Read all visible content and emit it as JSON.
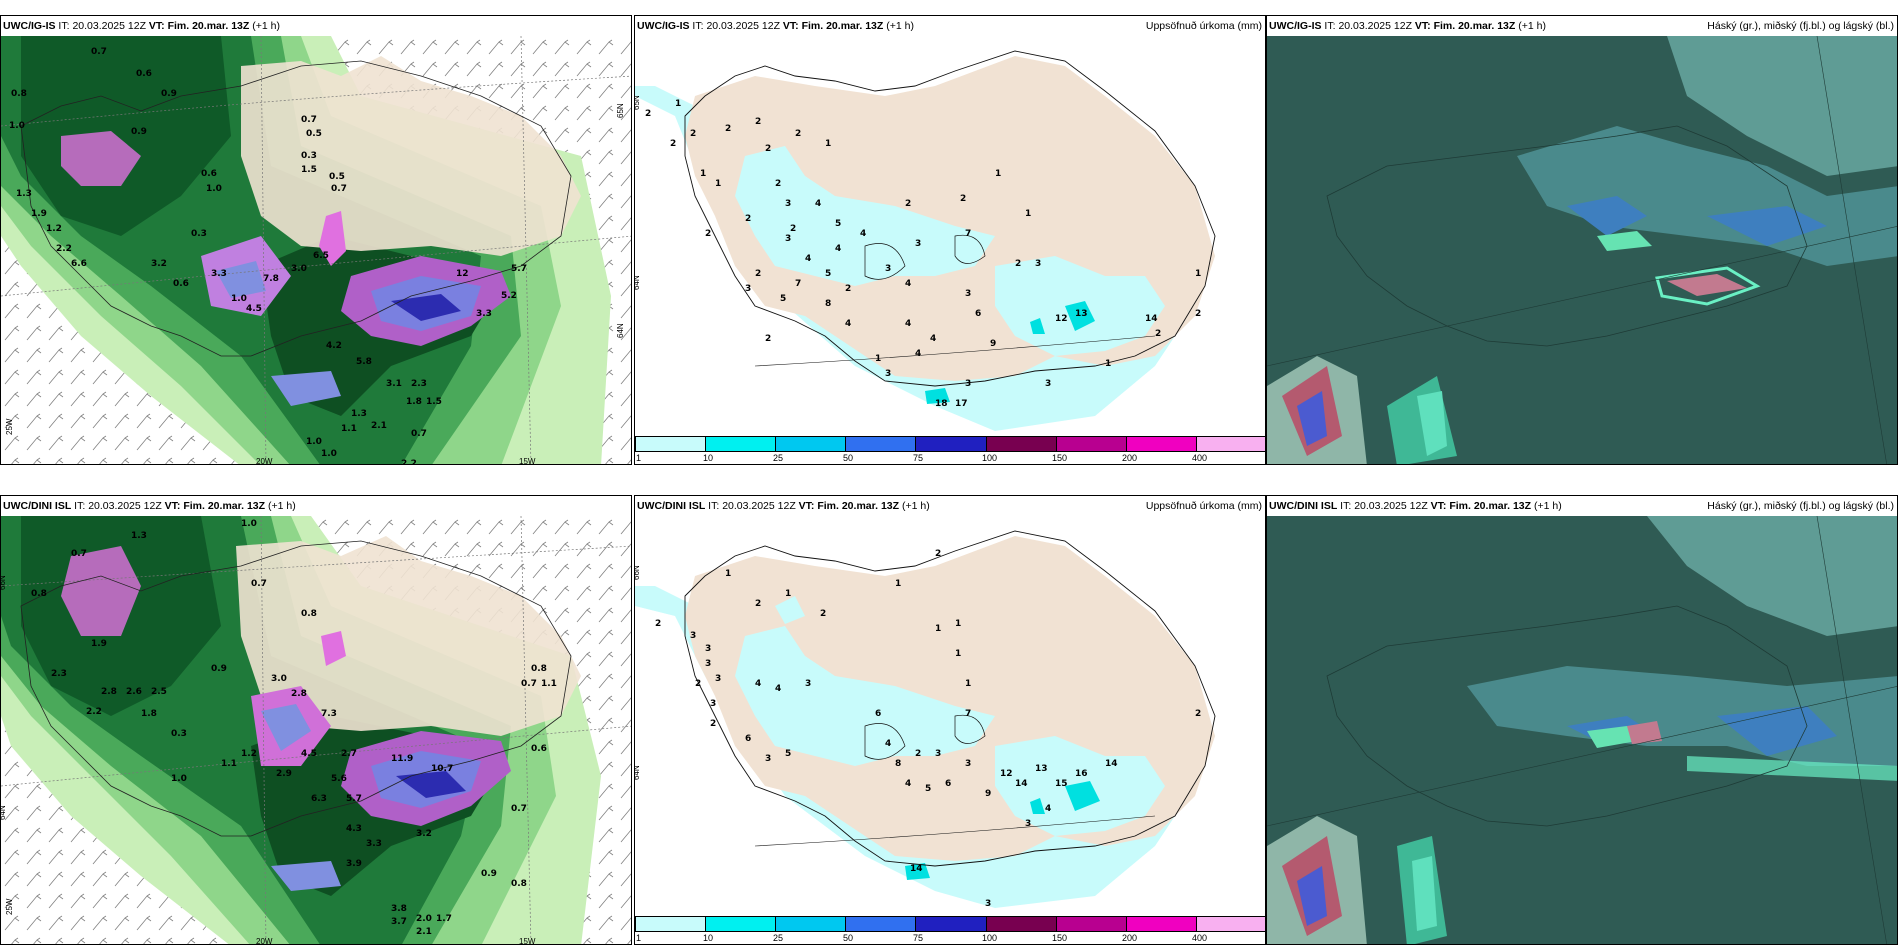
{
  "panels": [
    {
      "model_label": "UWC/IG-IS",
      "it_label": "IT:",
      "it_value": "20.03.2025 12Z",
      "vt_label": "VT:",
      "vt_value": "Fim. 20.mar. 13Z",
      "offset": "(+1 h)",
      "right_label": "",
      "axis_labels": [
        "20W",
        "15W",
        "25W",
        "65N",
        "64N"
      ]
    },
    {
      "model_label": "UWC/IG-IS",
      "it_label": "IT:",
      "it_value": "20.03.2025 12Z",
      "vt_label": "VT:",
      "vt_value": "Fim. 20.mar. 13Z",
      "offset": "(+1 h)",
      "right_label": "Uppsöfnuð úrkoma (mm)",
      "axis_labels": [
        "65N",
        "64N"
      ]
    },
    {
      "model_label": "UWC/IG-IS",
      "it_label": "IT:",
      "it_value": "20.03.2025 12Z",
      "vt_label": "VT:",
      "vt_value": "Fim. 20.mar. 13Z",
      "offset": "(+1 h)",
      "right_label": "Háský (gr.), miðský (fj.bl.) og lágský (bl.)",
      "axis_labels": []
    },
    {
      "model_label": "UWC/DINI ISL",
      "it_label": "IT:",
      "it_value": "20.03.2025 12Z",
      "vt_label": "VT:",
      "vt_value": "Fim. 20.mar. 13Z",
      "offset": "(+1 h)",
      "right_label": "",
      "axis_labels": [
        "20W",
        "15W",
        "25W",
        "66N",
        "64N"
      ]
    },
    {
      "model_label": "UWC/DINI ISL",
      "it_label": "IT:",
      "it_value": "20.03.2025 12Z",
      "vt_label": "VT:",
      "vt_value": "Fim. 20.mar. 13Z",
      "offset": "(+1 h)",
      "right_label": "Uppsöfnuð úrkoma (mm)",
      "axis_labels": [
        "66N",
        "64N"
      ]
    },
    {
      "model_label": "UWC/DINI ISL",
      "it_label": "IT:",
      "it_value": "20.03.2025 12Z",
      "vt_label": "VT:",
      "vt_value": "Fim. 20.mar. 13Z",
      "offset": "(+1 h)",
      "right_label": "Háský (gr.), miðský (fj.bl.) og lágský (bl.)",
      "axis_labels": []
    }
  ],
  "precip_legend": {
    "labels": [
      "1",
      "10",
      "25",
      "50",
      "75",
      "100",
      "150",
      "200",
      "400"
    ],
    "colors": [
      "#c8fbfb",
      "#00f0f0",
      "#00c8f0",
      "#3070f0",
      "#2020c0",
      "#780050",
      "#b80090",
      "#f000c0",
      "#f8b0f0"
    ]
  },
  "precip_numbers_top": [
    "2",
    "1",
    "2",
    "2",
    "2",
    "2",
    "2",
    "2",
    "1",
    "1",
    "1",
    "2",
    "2",
    "3",
    "2",
    "4",
    "2",
    "3",
    "4",
    "5",
    "2",
    "7",
    "3",
    "3",
    "4",
    "5",
    "2",
    "7",
    "8",
    "4",
    "4",
    "1",
    "4",
    "4",
    "3",
    "6",
    "9",
    "3",
    "1",
    "12",
    "13",
    "14",
    "1",
    "2",
    "3",
    "1",
    "1",
    "2",
    "2",
    "3",
    "18",
    "17",
    "5",
    "2",
    "2",
    "3",
    "4",
    "4",
    "2",
    "1",
    "3"
  ],
  "precip_numbers_bottom": [
    "2",
    "1",
    "1",
    "2",
    "3",
    "3",
    "2",
    "1",
    "2",
    "1",
    "3",
    "1",
    "2",
    "3",
    "4",
    "4",
    "3",
    "2",
    "6",
    "5",
    "3",
    "6",
    "7",
    "1",
    "1",
    "3",
    "4",
    "8",
    "2",
    "3",
    "4",
    "5",
    "6",
    "3",
    "9",
    "14",
    "13",
    "15",
    "16",
    "14",
    "3",
    "4",
    "12",
    "14",
    "2",
    "3"
  ],
  "contour_numbers_top": [
    "0.7",
    "0.6",
    "0.8",
    "0.9",
    "1.0",
    "0.9",
    "0.7",
    "0.3",
    "0.6",
    "0.5",
    "1.5",
    "1.0",
    "0.7",
    "0.5",
    "0.3",
    "1.3",
    "1.9",
    "1.2",
    "2.2",
    "3.2",
    "0.6",
    "3.3",
    "1.0",
    "3.0",
    "6.5",
    "7.8",
    "4.5",
    "5.2",
    "3.3",
    "4.2",
    "5.8",
    "3.1",
    "2.3",
    "1.8",
    "1.5",
    "1.1",
    "1.0",
    "0.7",
    "2.1",
    "2.2",
    "1.0",
    "1.3",
    "6.6",
    "5.7",
    "12"
  ],
  "contour_numbers_bottom": [
    "1.0",
    "0.7",
    "1.3",
    "0.8",
    "1.9",
    "2.3",
    "2.2",
    "2.8",
    "2.6",
    "2.5",
    "1.8",
    "0.9",
    "0.3",
    "0.7",
    "0.8",
    "1.0",
    "1.1",
    "1.2",
    "3.0",
    "2.8",
    "7.3",
    "4.5",
    "2.9",
    "2.7",
    "5.6",
    "6.3",
    "5.7",
    "11.9",
    "10.7",
    "4.3",
    "3.3",
    "3.2",
    "3.9",
    "3.8",
    "3.7",
    "2.0",
    "2.1",
    "1.7",
    "0.9",
    "0.8",
    "0.7",
    "0.8",
    "0.7",
    "1.1",
    "0.6"
  ]
}
